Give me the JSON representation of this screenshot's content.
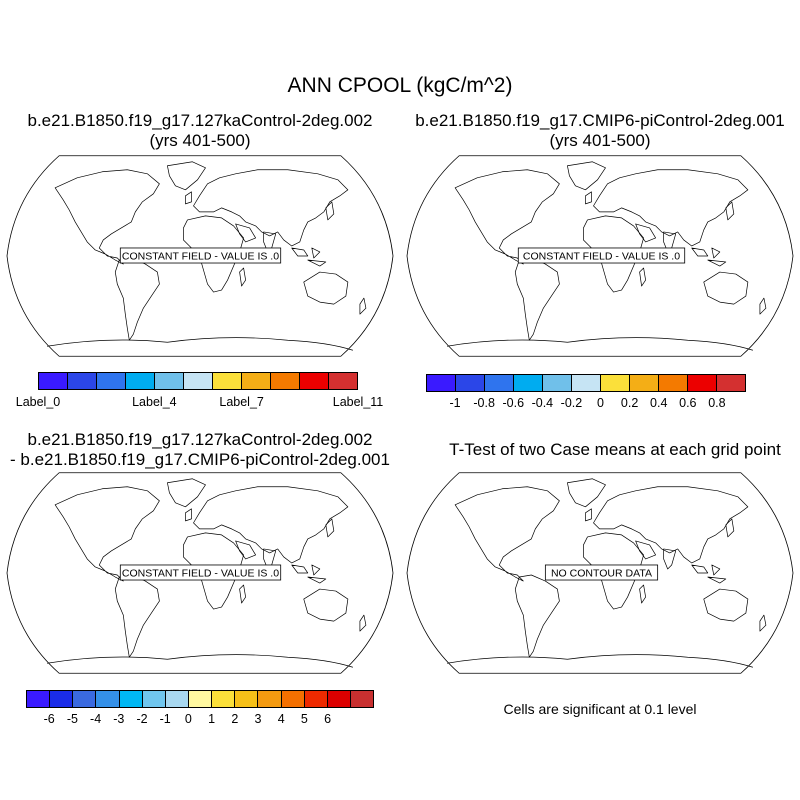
{
  "title": "ANN CPOOL (kgC/m^2)",
  "panels": [
    {
      "title_line1": "b.e21.B1850.f19_g17.127kaControl-2deg.002",
      "title_line2": "(yrs 401-500)",
      "message": "CONSTANT FIELD - VALUE IS .0"
    },
    {
      "title_line1": "b.e21.B1850.f19_g17.CMIP6-piControl-2deg.001",
      "title_line2": "(yrs 401-500)",
      "message": "CONSTANT FIELD - VALUE IS .0"
    },
    {
      "title_line1": "b.e21.B1850.f19_g17.127kaControl-2deg.002",
      "title_line2": "- b.e21.B1850.f19_g17.CMIP6-piControl-2deg.001",
      "message": "CONSTANT FIELD - VALUE IS .0"
    },
    {
      "title_line1": "T-Test of two Case means at each grid point",
      "title_line2": "",
      "message": "NO CONTOUR DATA"
    }
  ],
  "colorbars": {
    "top_left": {
      "colors": [
        "#3a1aff",
        "#2b46e8",
        "#2f74ee",
        "#00acf0",
        "#70c0ea",
        "#c6e4f4",
        "#fbe03a",
        "#f4ae16",
        "#f47a00",
        "#ec0000",
        "#d43030"
      ],
      "labels": [
        "Label_0",
        "Label_4",
        "Label_7",
        "Label_11"
      ]
    },
    "top_right": {
      "colors": [
        "#3a1aff",
        "#2b46e8",
        "#2f74ee",
        "#00acf0",
        "#70c0ea",
        "#c6e4f4",
        "#fbe03a",
        "#f4ae16",
        "#f47a00",
        "#ec0000",
        "#d43030"
      ],
      "labels": [
        "-1",
        "-0.8",
        "-0.6",
        "-0.4",
        "-0.2",
        "0",
        "0.2",
        "0.4",
        "0.6",
        "0.8"
      ]
    },
    "bottom_left": {
      "colors": [
        "#3a1aff",
        "#1a2ce8",
        "#3a6ae0",
        "#3490e8",
        "#00b8f4",
        "#70c6ee",
        "#a8d8f0",
        "#fff8a0",
        "#fbe03a",
        "#f6c018",
        "#f49a10",
        "#f47000",
        "#ee2a00",
        "#dc0000",
        "#c83030"
      ],
      "labels": [
        "-6",
        "-5",
        "-4",
        "-3",
        "-2",
        "-1",
        "0",
        "1",
        "2",
        "3",
        "4",
        "5",
        "6"
      ]
    }
  },
  "note": "Cells are significant at 0.1 level"
}
